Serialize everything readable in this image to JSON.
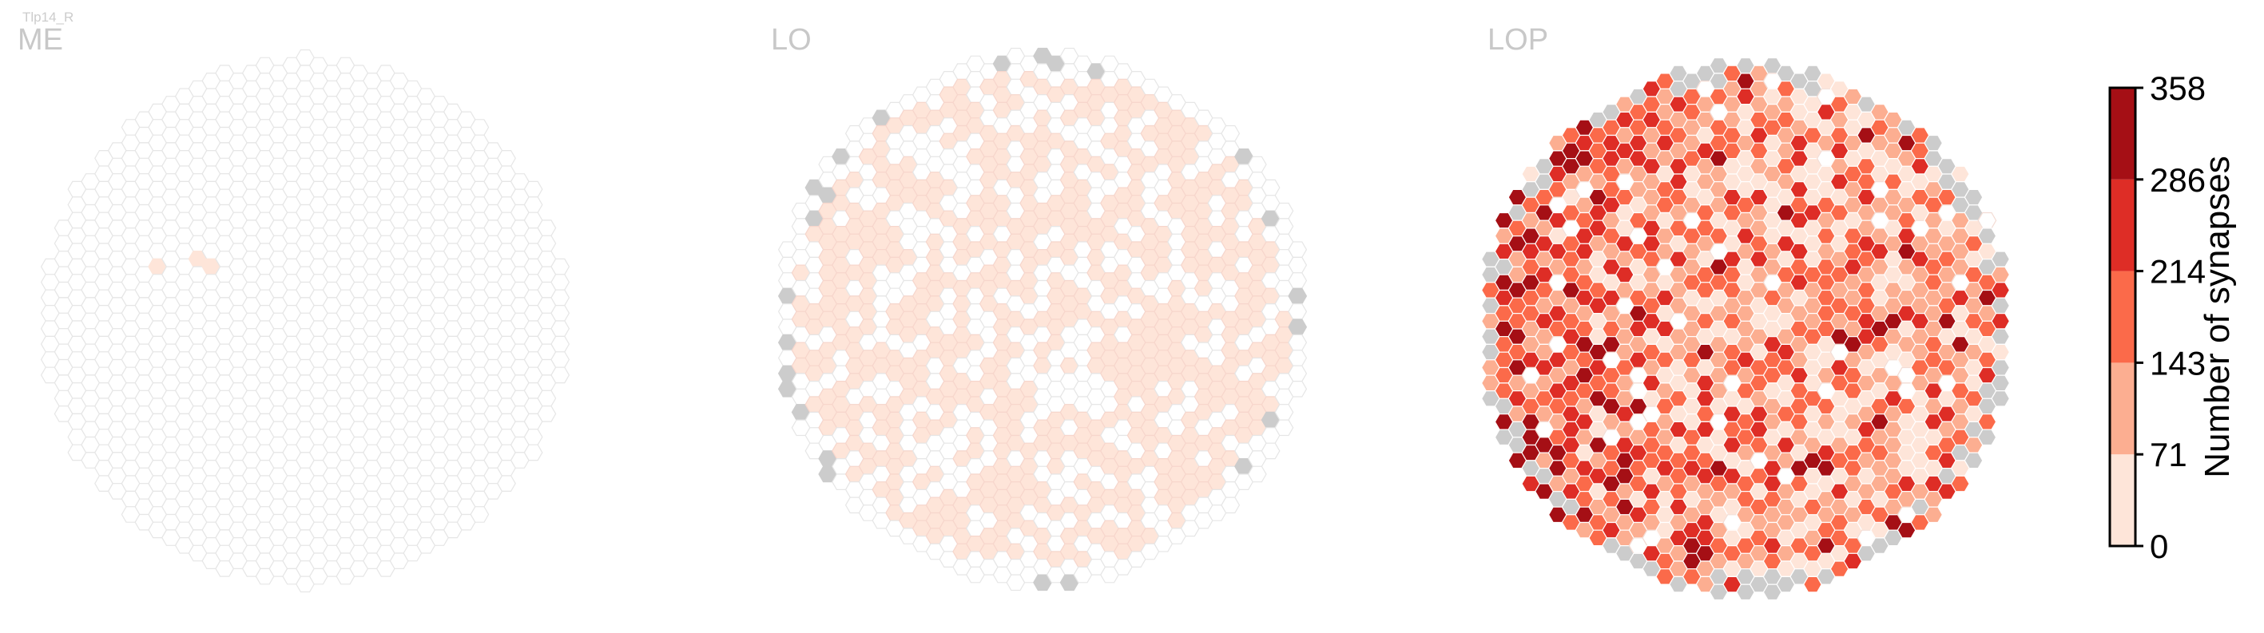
{
  "neuron_type": "Tlp14_R",
  "chart_data": {
    "type": "heatmap",
    "panels": [
      {
        "name": "ME",
        "summary": "hex column grid; nearly all columns 0 synapses, a few columns in the lowest bin (1-71) near upper-left"
      },
      {
        "name": "LO",
        "summary": "hex column grid; many columns in the lowest bin (1-71), remainder 0, grey columns along rim without data"
      },
      {
        "name": "LOP",
        "summary": "hex column grid; columns span all bins 0-358, highest densities on left half, grey columns along rim without data"
      }
    ],
    "colorbar": {
      "label": "Number of synapses",
      "ticks": [
        "0",
        "71",
        "143",
        "214",
        "286",
        "358"
      ],
      "range": [
        0,
        358
      ],
      "bins": [
        [
          0,
          71
        ],
        [
          71,
          143
        ],
        [
          143,
          214
        ],
        [
          214,
          286
        ],
        [
          286,
          358
        ]
      ],
      "colors": [
        "#fee5d9",
        "#fcae91",
        "#fb6a4a",
        "#de2d26",
        "#a50f15"
      ]
    },
    "no_data_color": "#cccccc",
    "empty_color": "#ffffff",
    "grid_line_color": "#e6e6e6"
  }
}
